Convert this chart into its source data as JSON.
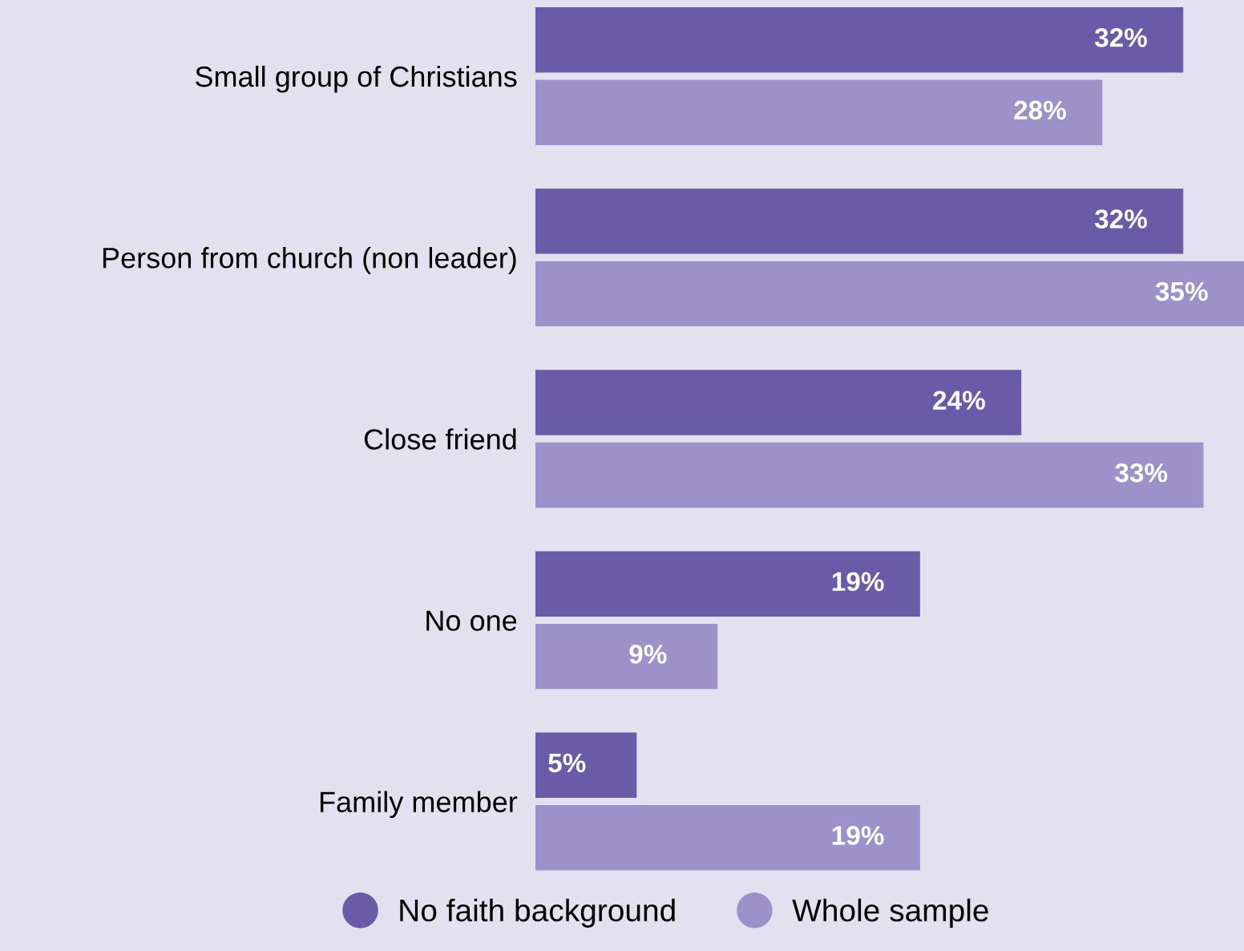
{
  "chart_data": {
    "type": "bar",
    "orientation": "horizontal",
    "categories": [
      "Small group of Christians",
      "Person from church (non leader)",
      "Close friend",
      "No one",
      "Family member"
    ],
    "series": [
      {
        "name": "No faith background",
        "color": "#6a5ba8",
        "values": [
          32,
          32,
          24,
          19,
          5
        ],
        "value_labels": [
          "32%",
          "32%",
          "24%",
          "19%",
          "5%"
        ]
      },
      {
        "name": "Whole sample",
        "color": "#9c92c9",
        "values": [
          28,
          35,
          33,
          9,
          19
        ],
        "value_labels": [
          "28%",
          "35%",
          "33%",
          "9%",
          "19%"
        ]
      }
    ],
    "legend": "bottom",
    "grid": false
  }
}
